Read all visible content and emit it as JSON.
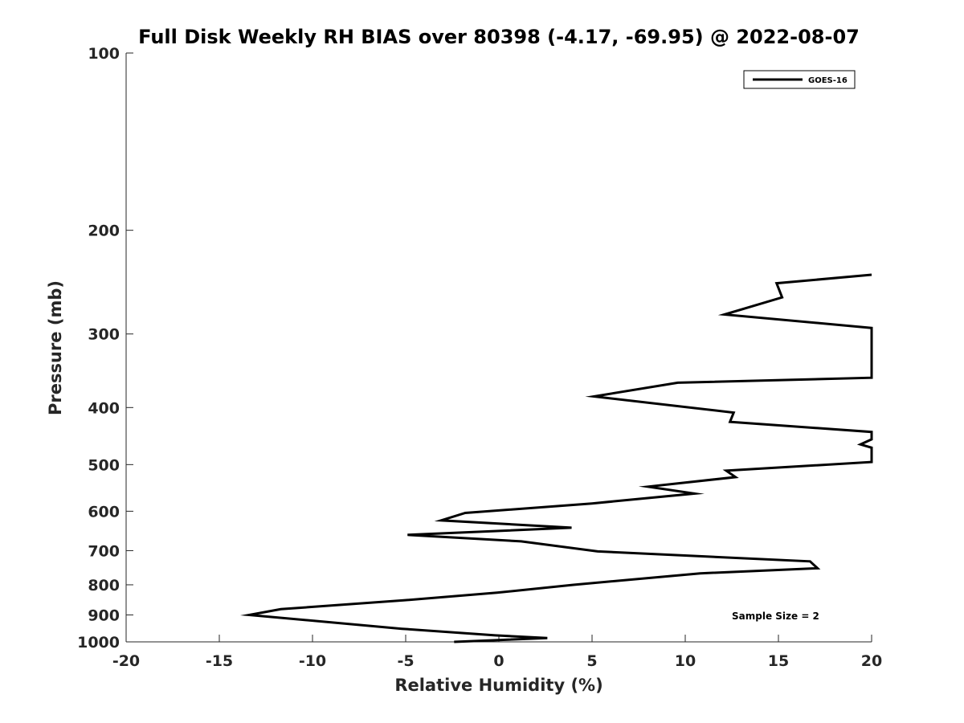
{
  "chart_data": {
    "type": "line",
    "title": "Full Disk Weekly RH BIAS over 80398 (-4.17, -69.95) @ 2022-08-07",
    "xlabel": "Relative Humidity (%)",
    "ylabel": "Pressure (mb)",
    "xlim": [
      -20,
      20
    ],
    "ylim": [
      100,
      1000
    ],
    "y_scale": "log",
    "y_reversed": true,
    "x_ticks": [
      -20,
      -15,
      -10,
      -5,
      0,
      5,
      10,
      15,
      20
    ],
    "x_tick_labels": [
      "-20",
      "-15",
      "-10",
      "-5",
      "0",
      "5",
      "10",
      "15",
      "20"
    ],
    "y_ticks": [
      100,
      200,
      300,
      400,
      500,
      600,
      700,
      800,
      900,
      1000
    ],
    "y_tick_labels": [
      "100",
      "200",
      "300",
      "400",
      "500",
      "600",
      "700",
      "800",
      "900",
      "1000"
    ],
    "grid": false,
    "legend_position": "top-right",
    "annotation": "Sample Size = 2",
    "series": [
      {
        "name": "GOES-16",
        "color": "#000000",
        "points": [
          [
            -2.4,
            1000
          ],
          [
            2.6,
            985
          ],
          [
            -0.2,
            975
          ],
          [
            -5.2,
            950
          ],
          [
            -13.4,
            900
          ],
          [
            -11.7,
            880
          ],
          [
            -5.1,
            850
          ],
          [
            -0.1,
            825
          ],
          [
            4.0,
            800
          ],
          [
            10.8,
            765
          ],
          [
            17.1,
            750
          ],
          [
            16.7,
            730
          ],
          [
            5.3,
            702
          ],
          [
            1.2,
            675
          ],
          [
            -4.9,
            658
          ],
          [
            3.9,
            640
          ],
          [
            -3.1,
            622
          ],
          [
            -1.8,
            604
          ],
          [
            5.0,
            582
          ],
          [
            10.5,
            560
          ],
          [
            8.0,
            545
          ],
          [
            12.7,
            525
          ],
          [
            12.2,
            512
          ],
          [
            20.0,
            495
          ],
          [
            20.0,
            468
          ],
          [
            19.4,
            462
          ],
          [
            20.0,
            453
          ],
          [
            20.0,
            440
          ],
          [
            12.4,
            423
          ],
          [
            12.6,
            408
          ],
          [
            5.1,
            383
          ],
          [
            9.6,
            363
          ],
          [
            20.0,
            356
          ],
          [
            20.0,
            293
          ],
          [
            12.1,
            278
          ],
          [
            15.2,
            260
          ],
          [
            14.9,
            246
          ],
          [
            20.0,
            238
          ]
        ]
      }
    ]
  }
}
